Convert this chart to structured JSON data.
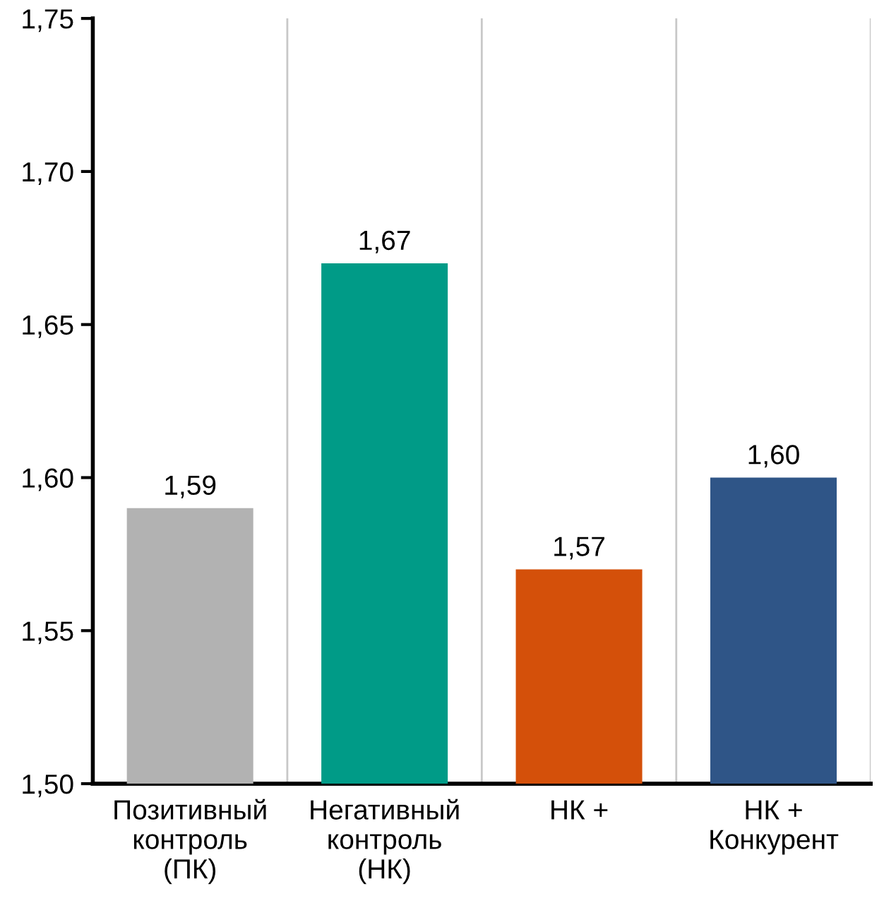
{
  "chart_data": {
    "type": "bar",
    "categories": [
      "Позитивный\nконтроль\n(ПК)",
      "Негативный\nконтроль\n(НК)",
      "НК +",
      "НК +\nКонкурент"
    ],
    "values": [
      1.59,
      1.67,
      1.57,
      1.6
    ],
    "colors": [
      "#b2b2b2",
      "#009b87",
      "#d4500a",
      "#2f5587"
    ],
    "ylim": [
      1.5,
      1.75
    ],
    "yticks": [
      {
        "value": 1.5,
        "label": "1,50"
      },
      {
        "value": 1.55,
        "label": "1,55"
      },
      {
        "value": 1.6,
        "label": "1,60"
      },
      {
        "value": 1.65,
        "label": "1,65"
      },
      {
        "value": 1.7,
        "label": "1,70"
      },
      {
        "value": 1.75,
        "label": "1,75"
      }
    ],
    "value_labels": [
      "1,59",
      "1,67",
      "1,57",
      "1,60"
    ],
    "grid": "x"
  }
}
